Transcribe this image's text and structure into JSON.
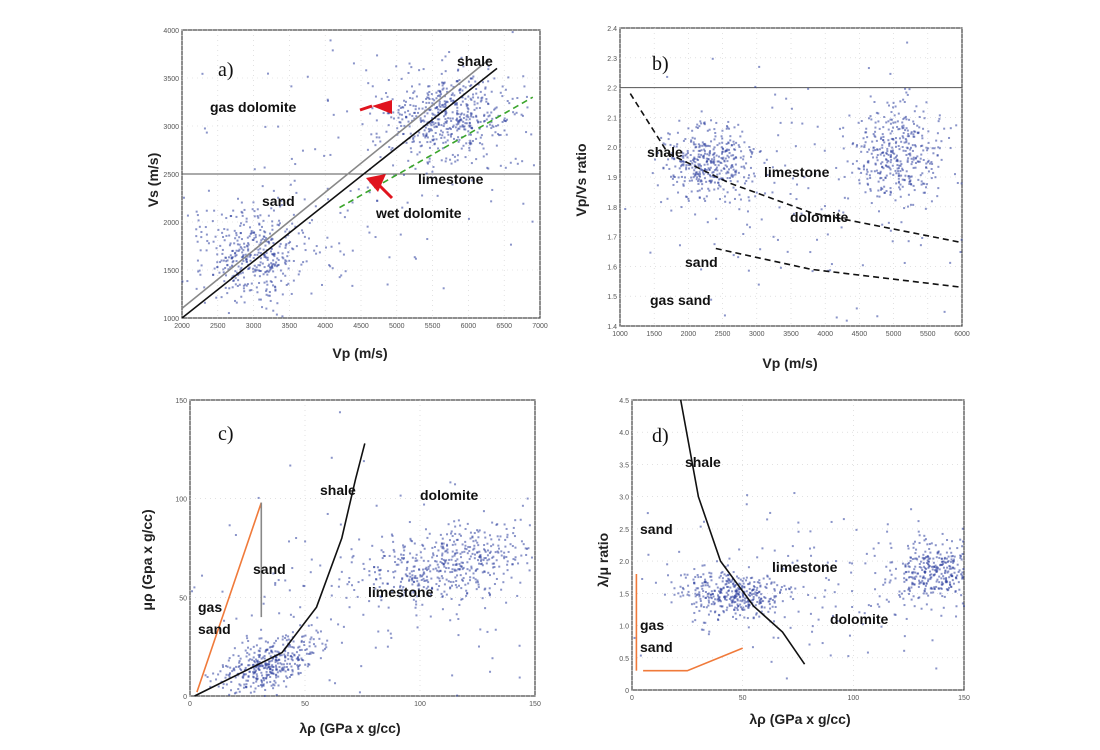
{
  "figure": {
    "colors": {
      "points": "#2a3d9c",
      "trend_green": "#3aa52b",
      "accent_red": "#e0141e",
      "accent_orange": "#f07a3a",
      "line_black": "#111111",
      "line_gray": "#888888"
    }
  },
  "chart_data": [
    {
      "id": "a",
      "type": "scatter",
      "panel_label": "a)",
      "xlabel": "Vp (m/s)",
      "ylabel": "Vs (m/s)",
      "xlim": [
        2000,
        7000
      ],
      "ylim": [
        1000,
        4000
      ],
      "xticks": [
        "2000",
        "2500",
        "3000",
        "3500",
        "4000",
        "4500",
        "5000",
        "5500",
        "6000",
        "6500",
        "7000"
      ],
      "yticks": [
        "1000",
        "1500",
        "2000",
        "2500",
        "3000",
        "3500",
        "4000"
      ],
      "annotations": [
        "shale",
        "gas dolomite",
        "limestone",
        "sand",
        "wet dolomite"
      ],
      "clusters": [
        {
          "name": "sand",
          "cx": 3000,
          "cy": 1650,
          "sx": 450,
          "sy": 250,
          "n": 420,
          "rot": 0.6
        },
        {
          "name": "shale/limestone",
          "cx": 5700,
          "cy": 3100,
          "sx": 450,
          "sy": 220,
          "n": 520,
          "rot": 0.3
        },
        {
          "name": "background",
          "cx": 4600,
          "cy": 2500,
          "sx": 1300,
          "sy": 700,
          "n": 140,
          "rot": 0
        }
      ],
      "lines": [
        {
          "color": "#111111",
          "x": [
            2000,
            6400
          ],
          "y": [
            1000,
            3600
          ]
        },
        {
          "color": "#888888",
          "x": [
            2000,
            6300
          ],
          "y": [
            1100,
            3700
          ]
        },
        {
          "color": "#3aa52b",
          "x": [
            4200,
            6900
          ],
          "y": [
            2150,
            3300
          ],
          "dash": true
        }
      ],
      "hline": 2500
    },
    {
      "id": "b",
      "type": "scatter",
      "panel_label": "b)",
      "xlabel": "Vp (m/s)",
      "ylabel": "Vp/Vs ratio",
      "xlim": [
        1000,
        6000
      ],
      "ylim": [
        1.4,
        2.4
      ],
      "xticks": [
        "1000",
        "1500",
        "2000",
        "2500",
        "3000",
        "3500",
        "4000",
        "4500",
        "5000",
        "5500",
        "6000"
      ],
      "yticks": [
        "1.4",
        "1.5",
        "1.6",
        "1.7",
        "1.8",
        "1.9",
        "2.0",
        "2.1",
        "2.2",
        "2.3",
        "2.4"
      ],
      "annotations": [
        "shale",
        "limestone",
        "dolomite",
        "sand",
        "gas sand"
      ],
      "clusters": [
        {
          "name": "shale",
          "cx": 2300,
          "cy": 1.95,
          "sx": 320,
          "sy": 0.06,
          "n": 380,
          "rot": 0
        },
        {
          "name": "limestone",
          "cx": 5100,
          "cy": 1.98,
          "sx": 320,
          "sy": 0.08,
          "n": 380,
          "rot": 0
        },
        {
          "name": "background",
          "cx": 3600,
          "cy": 1.85,
          "sx": 1300,
          "sy": 0.2,
          "n": 160,
          "rot": 0
        }
      ],
      "lines": [
        {
          "color": "#111111",
          "x": [
            1150,
            1700,
            2600,
            3800,
            6000
          ],
          "y": [
            2.18,
            1.98,
            1.88,
            1.78,
            1.68
          ],
          "dash": true
        },
        {
          "color": "#111111",
          "x": [
            2400,
            3800,
            6000
          ],
          "y": [
            1.66,
            1.59,
            1.53
          ],
          "dash": true
        }
      ],
      "hline": 2.2
    },
    {
      "id": "c",
      "type": "scatter",
      "panel_label": "c)",
      "xlabel": "λρ (GPa x g/cc)",
      "ylabel": "μρ (Gpa x g/cc)",
      "xlim": [
        0,
        150
      ],
      "ylim": [
        0,
        150
      ],
      "xticks": [
        "0",
        "50",
        "100",
        "150"
      ],
      "yticks": [
        "0",
        "50",
        "100",
        "150"
      ],
      "annotations": [
        "shale",
        "dolomite",
        "sand",
        "limestone",
        "gas sand"
      ],
      "clusters": [
        {
          "name": "sand/shale",
          "cx": 33,
          "cy": 15,
          "sx": 12,
          "sy": 6,
          "n": 420,
          "rot": 0.5
        },
        {
          "name": "dolomite/limestone",
          "cx": 112,
          "cy": 66,
          "sx": 18,
          "sy": 9,
          "n": 480,
          "rot": 0.25
        },
        {
          "name": "background",
          "cx": 80,
          "cy": 55,
          "sx": 45,
          "sy": 30,
          "n": 140,
          "rot": 0
        }
      ],
      "lines": [
        {
          "color": "#111111",
          "x": [
            2,
            40,
            55,
            66,
            72,
            76
          ],
          "y": [
            0,
            22,
            45,
            80,
            110,
            128
          ]
        },
        {
          "color": "#f07a3a",
          "x": [
            3,
            31
          ],
          "y": [
            2,
            98
          ]
        },
        {
          "color": "#888888",
          "x": [
            31,
            31
          ],
          "y": [
            98,
            40
          ]
        }
      ],
      "hline": null
    },
    {
      "id": "d",
      "type": "scatter",
      "panel_label": "d)",
      "xlabel": "λρ (GPa x g/cc)",
      "ylabel": "λ/μ ratio",
      "xlim": [
        0,
        150
      ],
      "ylim": [
        0,
        4.5
      ],
      "xticks": [
        "0",
        "50",
        "100",
        "150"
      ],
      "yticks": [
        "0",
        "0.5",
        "1.0",
        "1.5",
        "2.0",
        "2.5",
        "3.0",
        "3.5",
        "4.0",
        "4.5"
      ],
      "annotations": [
        "shale",
        "sand",
        "limestone",
        "dolomite",
        "gas sand"
      ],
      "clusters": [
        {
          "name": "sand/shale",
          "cx": 45,
          "cy": 1.5,
          "sx": 12,
          "sy": 0.18,
          "n": 380,
          "rot": 0
        },
        {
          "name": "limestone",
          "cx": 138,
          "cy": 1.85,
          "sx": 10,
          "sy": 0.22,
          "n": 360,
          "rot": 0
        },
        {
          "name": "background",
          "cx": 85,
          "cy": 1.6,
          "sx": 45,
          "sy": 0.6,
          "n": 160,
          "rot": 0
        }
      ],
      "lines": [
        {
          "color": "#111111",
          "x": [
            22,
            30,
            40,
            55,
            68,
            78
          ],
          "y": [
            4.5,
            3.0,
            2.0,
            1.3,
            0.9,
            0.4
          ]
        },
        {
          "color": "#f07a3a",
          "x": [
            2,
            2
          ],
          "y": [
            1.8,
            0.3
          ]
        },
        {
          "color": "#f07a3a",
          "x": [
            5,
            25,
            50
          ],
          "y": [
            0.3,
            0.3,
            0.65
          ]
        }
      ],
      "hline": null
    }
  ]
}
